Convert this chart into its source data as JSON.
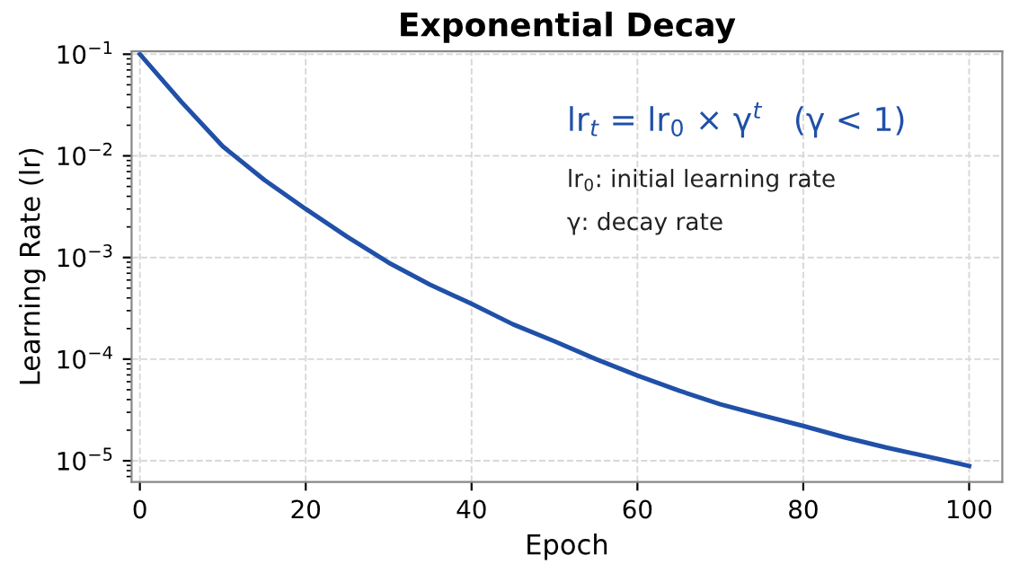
{
  "chart_data": {
    "type": "line",
    "title": "Exponential Decay",
    "xlabel": "Epoch",
    "ylabel": "Learning Rate (lr)",
    "x": [
      0,
      5,
      10,
      15,
      20,
      25,
      30,
      35,
      40,
      45,
      50,
      55,
      60,
      65,
      70,
      75,
      80,
      85,
      90,
      95,
      100
    ],
    "series": [
      {
        "color": "#2050a8",
        "values": [
          0.1,
          0.034,
          0.0124,
          0.0058,
          0.003,
          0.0016,
          0.00089,
          0.00054,
          0.00035,
          0.00022,
          0.00015,
          0.0001,
          6.9e-05,
          4.9e-05,
          3.6e-05,
          2.8e-05,
          2.2e-05,
          1.7e-05,
          1.35e-05,
          1.1e-05,
          8.9e-06
        ]
      }
    ],
    "log": "y",
    "xlim": [
      -1,
      104
    ],
    "ylim": [
      6.2e-06,
      0.107
    ],
    "xticks": [
      0,
      20,
      40,
      60,
      80,
      100
    ],
    "yticks": [
      {
        "value": 0.1,
        "label": "10$^{−1}$"
      },
      {
        "value": 0.01,
        "label": "10$^{−2}$"
      },
      {
        "value": 0.001,
        "label": "10$^{−3}$"
      },
      {
        "value": 0.0001,
        "label": "10$^{−4}$"
      },
      {
        "value": 1e-05,
        "label": "10$^{−5}$"
      }
    ],
    "grid": true,
    "marker": "none",
    "line_style": "solid",
    "annotations": [
      "lr$_{t}$ = lr$_{0}$ × γ$^{t}$   (γ < 1)",
      "lr$_{0}$: initial learning rate",
      "γ: decay rate"
    ]
  }
}
